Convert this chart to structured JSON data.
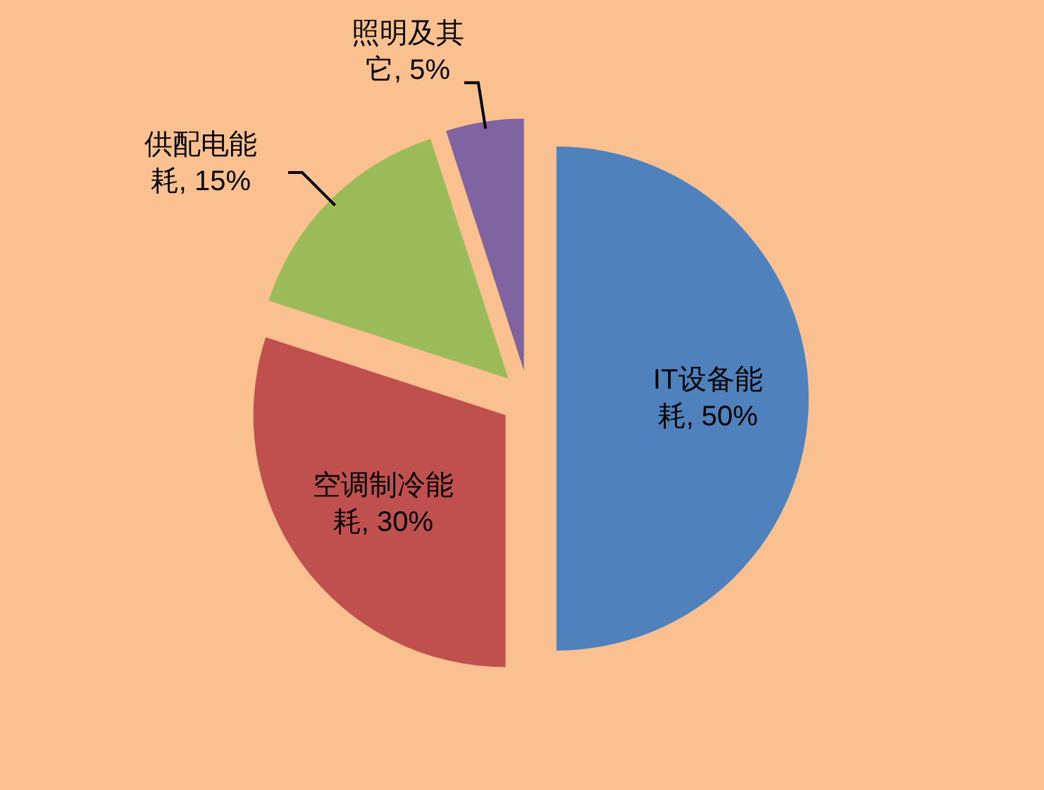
{
  "chart_data": {
    "type": "pie",
    "categories": [
      "IT设备能耗",
      "空调制冷能耗",
      "供配电能耗",
      "照明及其它"
    ],
    "values": [
      50,
      30,
      15,
      5
    ],
    "value_labels": [
      "50%",
      "30%",
      "15%",
      "5%"
    ],
    "colors": [
      "#4f81bd",
      "#c0504d",
      "#9bbb59",
      "#8064a2"
    ]
  }
}
